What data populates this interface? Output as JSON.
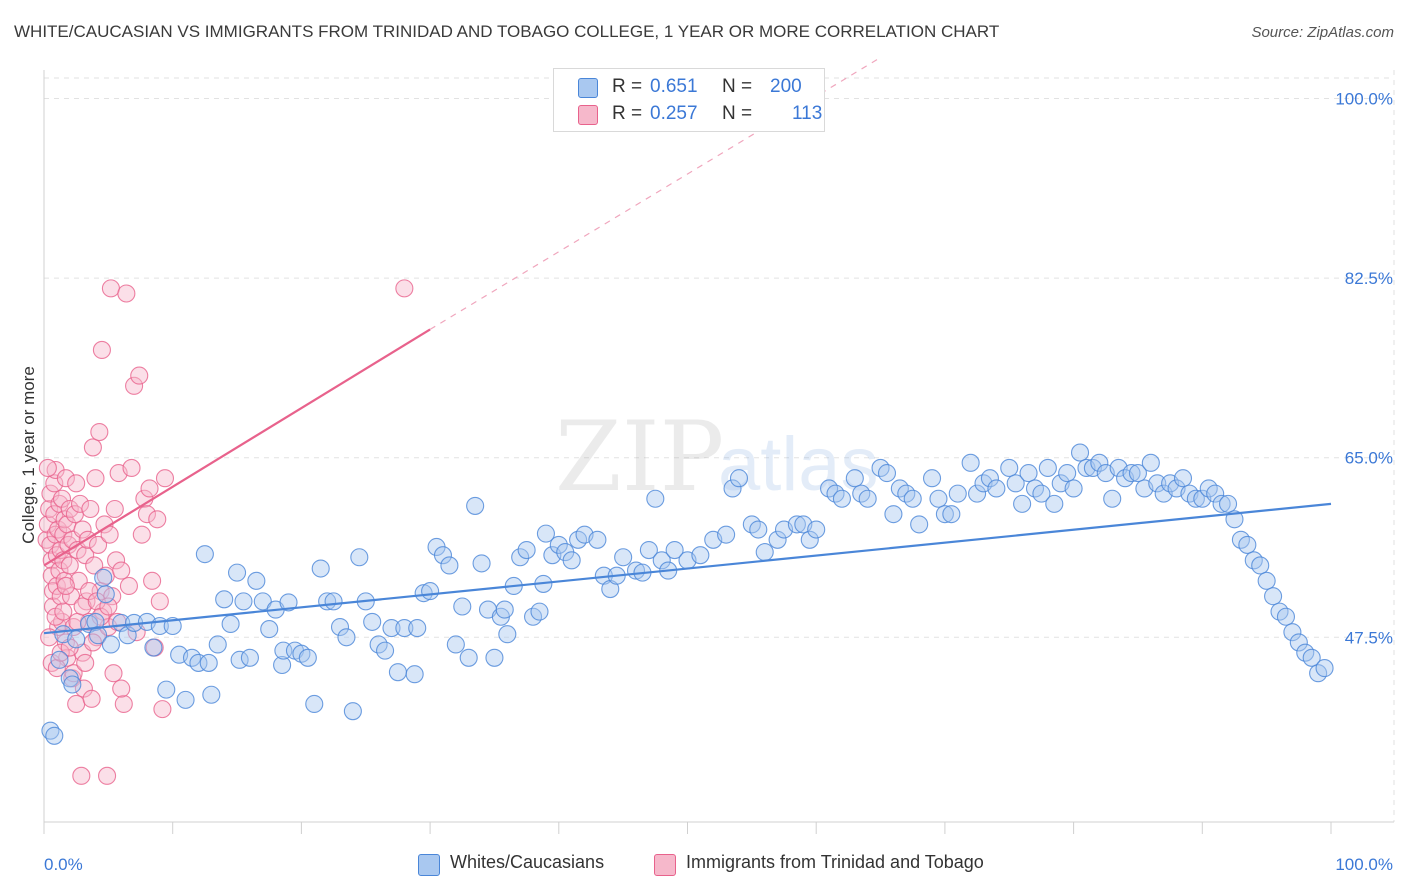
{
  "title": "WHITE/CAUCASIAN VS IMMIGRANTS FROM TRINIDAD AND TOBAGO COLLEGE, 1 YEAR OR MORE CORRELATION CHART",
  "source": "Source: ZipAtlas.com",
  "watermark": {
    "zip": "ZIP",
    "atlas": "atlas"
  },
  "colors": {
    "blue": "#4a86d8",
    "blue_fill": "#a9c8f0",
    "pink": "#e8628c",
    "pink_fill": "#f6b8cb",
    "axis_text": "#3b78d6"
  },
  "legend": {
    "r_label": "R =",
    "n_label": "N =",
    "rows": [
      {
        "r": "0.651",
        "n": "200"
      },
      {
        "r": "0.257",
        "n": "113"
      }
    ]
  },
  "bottom_legend": [
    "Whites/Caucasians",
    "Immigrants from Trinidad and Tobago"
  ],
  "chart_data": {
    "type": "scatter",
    "ylabel": "College, 1 year or more",
    "xlim": [
      0,
      100
    ],
    "ylim": [
      29.5,
      102
    ],
    "x_tick_labels": [
      "0.0%",
      "100.0%"
    ],
    "y_ticks": [
      47.5,
      65.0,
      82.5,
      100.0
    ],
    "y_tick_labels": [
      "47.5%",
      "65.0%",
      "82.5%",
      "100.0%"
    ],
    "grid": true,
    "series": [
      {
        "name": "Whites/Caucasians",
        "color": "#4a86d8",
        "trend": {
          "x": [
            0,
            100
          ],
          "y": [
            47.9,
            60.5
          ]
        },
        "points": [
          [
            0.5,
            38.4
          ],
          [
            0.8,
            37.9
          ],
          [
            1.2,
            45.3
          ],
          [
            1.5,
            47.8
          ],
          [
            2.0,
            43.5
          ],
          [
            2.2,
            42.9
          ],
          [
            2.5,
            47.3
          ],
          [
            3.5,
            48.8
          ],
          [
            4.0,
            49.0
          ],
          [
            4.2,
            47.7
          ],
          [
            4.8,
            51.7
          ],
          [
            4.6,
            53.3
          ],
          [
            5.2,
            46.8
          ],
          [
            6.0,
            48.9
          ],
          [
            6.5,
            47.7
          ],
          [
            7.0,
            48.9
          ],
          [
            8.0,
            49.0
          ],
          [
            8.5,
            46.5
          ],
          [
            9.0,
            48.6
          ],
          [
            9.5,
            42.4
          ],
          [
            10.0,
            48.6
          ],
          [
            10.5,
            45.8
          ],
          [
            11.0,
            41.4
          ],
          [
            11.5,
            45.5
          ],
          [
            12.0,
            45.0
          ],
          [
            12.5,
            55.6
          ],
          [
            12.8,
            45.0
          ],
          [
            13.0,
            41.9
          ],
          [
            13.5,
            46.8
          ],
          [
            14.0,
            51.2
          ],
          [
            14.5,
            48.8
          ],
          [
            15.0,
            53.8
          ],
          [
            15.2,
            45.3
          ],
          [
            15.5,
            51.0
          ],
          [
            16.0,
            45.5
          ],
          [
            16.5,
            53.0
          ],
          [
            17.0,
            51.0
          ],
          [
            17.5,
            48.3
          ],
          [
            18.0,
            50.2
          ],
          [
            18.5,
            44.8
          ],
          [
            18.6,
            46.2
          ],
          [
            19.0,
            50.9
          ],
          [
            19.5,
            46.2
          ],
          [
            20.0,
            45.9
          ],
          [
            20.5,
            45.5
          ],
          [
            21.0,
            41.0
          ],
          [
            21.5,
            54.2
          ],
          [
            22.0,
            51.0
          ],
          [
            22.5,
            51.0
          ],
          [
            23.0,
            48.5
          ],
          [
            23.5,
            47.5
          ],
          [
            24.0,
            40.3
          ],
          [
            24.5,
            55.3
          ],
          [
            25.0,
            51.0
          ],
          [
            25.5,
            49.0
          ],
          [
            26.0,
            46.8
          ],
          [
            26.5,
            46.2
          ],
          [
            27.0,
            48.4
          ],
          [
            27.5,
            44.1
          ],
          [
            28.0,
            48.4
          ],
          [
            28.8,
            43.9
          ],
          [
            29.0,
            48.4
          ],
          [
            29.5,
            51.8
          ],
          [
            30.0,
            52.0
          ],
          [
            30.5,
            56.3
          ],
          [
            31.0,
            55.5
          ],
          [
            31.5,
            54.5
          ],
          [
            32.0,
            46.8
          ],
          [
            32.5,
            50.5
          ],
          [
            33.0,
            45.5
          ],
          [
            33.5,
            60.3
          ],
          [
            34.0,
            54.7
          ],
          [
            34.5,
            50.2
          ],
          [
            35.0,
            45.5
          ],
          [
            35.5,
            49.5
          ],
          [
            35.8,
            50.2
          ],
          [
            36.0,
            47.8
          ],
          [
            36.5,
            52.5
          ],
          [
            37.0,
            55.3
          ],
          [
            37.5,
            56.0
          ],
          [
            38.0,
            49.5
          ],
          [
            38.5,
            50.0
          ],
          [
            38.8,
            52.7
          ],
          [
            39.0,
            57.6
          ],
          [
            39.5,
            55.5
          ],
          [
            40.0,
            56.5
          ],
          [
            40.5,
            55.8
          ],
          [
            41.0,
            55.0
          ],
          [
            41.5,
            57.0
          ],
          [
            42.0,
            57.5
          ],
          [
            43.0,
            57.0
          ],
          [
            43.5,
            53.5
          ],
          [
            44.0,
            52.2
          ],
          [
            44.5,
            53.5
          ],
          [
            45.0,
            55.3
          ],
          [
            46.0,
            54.0
          ],
          [
            46.5,
            53.8
          ],
          [
            47.0,
            56.0
          ],
          [
            47.5,
            61.0
          ],
          [
            48.0,
            55.0
          ],
          [
            48.5,
            54.0
          ],
          [
            49.0,
            56.0
          ],
          [
            50.0,
            55.0
          ],
          [
            51.0,
            55.5
          ],
          [
            52.0,
            57.0
          ],
          [
            53.0,
            57.5
          ],
          [
            53.5,
            62.0
          ],
          [
            54.0,
            63.0
          ],
          [
            55.0,
            58.5
          ],
          [
            55.5,
            58.0
          ],
          [
            56.0,
            55.8
          ],
          [
            57.0,
            57.0
          ],
          [
            57.5,
            58.0
          ],
          [
            58.5,
            58.5
          ],
          [
            59.0,
            58.5
          ],
          [
            59.5,
            57.0
          ],
          [
            60.0,
            58.0
          ],
          [
            61.0,
            62.0
          ],
          [
            61.5,
            61.5
          ],
          [
            62.0,
            61.0
          ],
          [
            63.0,
            63.0
          ],
          [
            63.5,
            61.5
          ],
          [
            64.0,
            61.0
          ],
          [
            65.0,
            64.0
          ],
          [
            65.5,
            63.5
          ],
          [
            66.0,
            59.5
          ],
          [
            66.5,
            62.0
          ],
          [
            67.0,
            61.5
          ],
          [
            67.5,
            61.0
          ],
          [
            68.0,
            58.5
          ],
          [
            69.0,
            63.0
          ],
          [
            69.5,
            61.0
          ],
          [
            70.0,
            59.5
          ],
          [
            70.5,
            59.5
          ],
          [
            71.0,
            61.5
          ],
          [
            72.0,
            64.5
          ],
          [
            72.5,
            61.5
          ],
          [
            73.0,
            62.5
          ],
          [
            73.5,
            63.0
          ],
          [
            74.0,
            62.0
          ],
          [
            75.0,
            64.0
          ],
          [
            75.5,
            62.5
          ],
          [
            76.0,
            60.5
          ],
          [
            76.5,
            63.5
          ],
          [
            77.0,
            62.0
          ],
          [
            77.5,
            61.5
          ],
          [
            78.0,
            64.0
          ],
          [
            78.5,
            60.5
          ],
          [
            79.0,
            62.5
          ],
          [
            79.5,
            63.5
          ],
          [
            80.0,
            62.0
          ],
          [
            80.5,
            65.5
          ],
          [
            81.0,
            64.0
          ],
          [
            81.5,
            64.0
          ],
          [
            82.0,
            64.5
          ],
          [
            82.5,
            63.5
          ],
          [
            83.0,
            61.0
          ],
          [
            83.5,
            64.0
          ],
          [
            84.0,
            63.0
          ],
          [
            84.5,
            63.5
          ],
          [
            85.0,
            63.5
          ],
          [
            85.5,
            62.0
          ],
          [
            86.0,
            64.5
          ],
          [
            86.5,
            62.5
          ],
          [
            87.0,
            61.5
          ],
          [
            87.5,
            62.5
          ],
          [
            88.0,
            62.0
          ],
          [
            88.5,
            63.0
          ],
          [
            89.0,
            61.5
          ],
          [
            89.5,
            61.0
          ],
          [
            90.0,
            61.0
          ],
          [
            90.5,
            62.0
          ],
          [
            91.0,
            61.5
          ],
          [
            91.5,
            60.5
          ],
          [
            92.0,
            60.5
          ],
          [
            92.5,
            59.0
          ],
          [
            93.0,
            57.0
          ],
          [
            93.5,
            56.5
          ],
          [
            94.0,
            55.0
          ],
          [
            94.5,
            54.5
          ],
          [
            95.0,
            53.0
          ],
          [
            95.5,
            51.5
          ],
          [
            96.0,
            50.0
          ],
          [
            96.5,
            49.5
          ],
          [
            97.0,
            48.0
          ],
          [
            97.5,
            47.0
          ],
          [
            98.0,
            46.0
          ],
          [
            98.5,
            45.5
          ],
          [
            99.0,
            44.0
          ],
          [
            99.5,
            44.5
          ]
        ]
      },
      {
        "name": "Immigrants from Trinidad and Tobago",
        "color": "#e8628c",
        "trend": {
          "x": [
            0,
            30
          ],
          "y": [
            54.5,
            77.5
          ]
        },
        "trend_extension": {
          "x": [
            30,
            65
          ],
          "y": [
            77.5,
            104
          ]
        },
        "points": [
          [
            0.2,
            57.0
          ],
          [
            0.3,
            58.5
          ],
          [
            0.4,
            60.0
          ],
          [
            0.5,
            61.5
          ],
          [
            0.5,
            56.5
          ],
          [
            0.6,
            55.0
          ],
          [
            0.6,
            53.5
          ],
          [
            0.7,
            52.0
          ],
          [
            0.7,
            50.5
          ],
          [
            0.8,
            59.5
          ],
          [
            0.8,
            62.5
          ],
          [
            0.9,
            57.5
          ],
          [
            0.9,
            63.8
          ],
          [
            1.0,
            55.5
          ],
          [
            1.0,
            52.5
          ],
          [
            1.1,
            48.5
          ],
          [
            1.1,
            58.0
          ],
          [
            1.2,
            60.5
          ],
          [
            1.2,
            54.0
          ],
          [
            1.3,
            56.0
          ],
          [
            1.3,
            51.5
          ],
          [
            1.4,
            49.0
          ],
          [
            1.4,
            61.0
          ],
          [
            1.5,
            57.5
          ],
          [
            1.5,
            55.0
          ],
          [
            1.6,
            59.0
          ],
          [
            1.6,
            53.0
          ],
          [
            1.7,
            47.0
          ],
          [
            1.7,
            63.0
          ],
          [
            1.8,
            58.5
          ],
          [
            1.8,
            45.5
          ],
          [
            1.9,
            56.5
          ],
          [
            2.0,
            60.0
          ],
          [
            2.0,
            54.5
          ],
          [
            2.1,
            51.5
          ],
          [
            2.2,
            57.0
          ],
          [
            2.2,
            43.5
          ],
          [
            2.3,
            48.5
          ],
          [
            2.4,
            59.5
          ],
          [
            2.5,
            62.5
          ],
          [
            2.5,
            41.0
          ],
          [
            2.6,
            56.0
          ],
          [
            2.7,
            53.0
          ],
          [
            2.8,
            60.5
          ],
          [
            2.9,
            34.0
          ],
          [
            3.0,
            58.0
          ],
          [
            3.0,
            46.0
          ],
          [
            3.1,
            42.5
          ],
          [
            3.2,
            55.5
          ],
          [
            3.3,
            51.0
          ],
          [
            3.4,
            57.0
          ],
          [
            3.5,
            49.0
          ],
          [
            3.6,
            60.0
          ],
          [
            3.7,
            41.5
          ],
          [
            3.8,
            66.0
          ],
          [
            3.9,
            54.5
          ],
          [
            4.0,
            63.0
          ],
          [
            4.1,
            47.5
          ],
          [
            4.2,
            56.5
          ],
          [
            4.3,
            67.5
          ],
          [
            4.4,
            52.0
          ],
          [
            4.5,
            75.5
          ],
          [
            4.6,
            50.0
          ],
          [
            4.7,
            58.5
          ],
          [
            4.8,
            53.5
          ],
          [
            4.9,
            34.0
          ],
          [
            5.0,
            48.5
          ],
          [
            5.1,
            57.5
          ],
          [
            5.2,
            81.5
          ],
          [
            5.3,
            51.5
          ],
          [
            5.4,
            44.0
          ],
          [
            5.5,
            60.0
          ],
          [
            5.6,
            55.0
          ],
          [
            5.7,
            49.0
          ],
          [
            5.8,
            63.5
          ],
          [
            6.0,
            54.0
          ],
          [
            6.2,
            41.0
          ],
          [
            6.4,
            81.0
          ],
          [
            6.6,
            52.5
          ],
          [
            6.8,
            64.0
          ],
          [
            7.0,
            72.0
          ],
          [
            7.2,
            48.0
          ],
          [
            7.4,
            73.0
          ],
          [
            7.6,
            57.5
          ],
          [
            7.8,
            61.0
          ],
          [
            8.0,
            59.5
          ],
          [
            8.2,
            62.0
          ],
          [
            8.4,
            53.0
          ],
          [
            8.6,
            46.5
          ],
          [
            8.8,
            59.0
          ],
          [
            9.0,
            51.0
          ],
          [
            9.2,
            40.5
          ],
          [
            9.4,
            63.0
          ],
          [
            0.3,
            64.0
          ],
          [
            0.4,
            47.5
          ],
          [
            0.6,
            45.0
          ],
          [
            0.9,
            49.5
          ],
          [
            1.0,
            44.5
          ],
          [
            1.3,
            46.0
          ],
          [
            1.5,
            50.0
          ],
          [
            1.7,
            52.5
          ],
          [
            2.0,
            46.5
          ],
          [
            2.3,
            44.0
          ],
          [
            2.6,
            49.0
          ],
          [
            3.0,
            50.5
          ],
          [
            3.2,
            45.0
          ],
          [
            3.5,
            52.0
          ],
          [
            3.8,
            47.0
          ],
          [
            4.1,
            51.0
          ],
          [
            4.4,
            49.5
          ],
          [
            5.0,
            50.5
          ],
          [
            6.0,
            42.5
          ],
          [
            28.0,
            81.5
          ]
        ]
      }
    ]
  }
}
